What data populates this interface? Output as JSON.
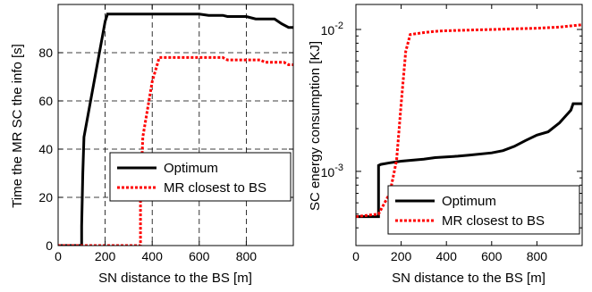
{
  "chart_data": [
    {
      "type": "line",
      "xlabel": "SN distance to the BS [m]",
      "ylabel": "Time the MR SC the info [s]",
      "xlim": [
        0,
        1000
      ],
      "ylim": [
        0,
        100
      ],
      "xscale": "linear",
      "yscale": "linear",
      "grid": true,
      "grid_style": "dashed",
      "legend_position": "lower-right",
      "x_ticks": [
        0,
        200,
        400,
        600,
        800
      ],
      "x_tick_labels": [
        "0",
        "200",
        "400",
        "600",
        "800"
      ],
      "y_ticks": [
        0,
        20,
        40,
        60,
        80
      ],
      "y_tick_labels": [
        "0",
        "20",
        "40",
        "60",
        "80"
      ],
      "series": [
        {
          "name": "Optimum",
          "color": "#000000",
          "style": "solid",
          "x": [
            0,
            100,
            100,
            105,
            110,
            200,
            210,
            600,
            640,
            700,
            720,
            800,
            840,
            920,
            950,
            980,
            1000
          ],
          "y": [
            0,
            0,
            8,
            30,
            45,
            93,
            96,
            96,
            95.5,
            95.5,
            95,
            95,
            94,
            94,
            92,
            90.5,
            90.5
          ]
        },
        {
          "name": "MR closest to BS",
          "color": "#ff0000",
          "style": "dotted",
          "x": [
            0,
            350,
            350,
            360,
            400,
            430,
            700,
            720,
            860,
            880,
            960,
            980,
            1000
          ],
          "y": [
            0,
            0,
            20,
            45,
            68,
            78,
            78,
            77,
            77,
            76,
            76,
            75,
            75
          ]
        }
      ]
    },
    {
      "type": "line",
      "xlabel": "SN distance to the BS [m]",
      "ylabel": "SC energy consumption [KJ]",
      "xlim": [
        0,
        1000
      ],
      "ylim": [
        0.0003,
        0.015
      ],
      "xscale": "linear",
      "yscale": "log",
      "grid": false,
      "legend_position": "lower-right",
      "x_ticks": [
        0,
        200,
        400,
        600,
        800
      ],
      "x_tick_labels": [
        "0",
        "200",
        "400",
        "600",
        "800"
      ],
      "y_ticks": [
        0.001,
        0.01
      ],
      "y_tick_base": [
        "10",
        "10"
      ],
      "y_tick_exp": [
        "-3",
        "-2"
      ],
      "series": [
        {
          "name": "Optimum",
          "color": "#000000",
          "style": "solid",
          "x": [
            0,
            100,
            100,
            110,
            150,
            200,
            300,
            350,
            450,
            500,
            600,
            650,
            700,
            750,
            800,
            850,
            900,
            950,
            960,
            1000
          ],
          "y": [
            0.00048,
            0.00048,
            0.0011,
            0.00112,
            0.00115,
            0.00118,
            0.00122,
            0.00125,
            0.00128,
            0.0013,
            0.00135,
            0.0014,
            0.0015,
            0.00165,
            0.0018,
            0.0019,
            0.0022,
            0.0027,
            0.003,
            0.003
          ]
        },
        {
          "name": "MR closest to BS",
          "color": "#ff0000",
          "style": "dotted",
          "x": [
            0,
            100,
            150,
            180,
            200,
            220,
            240,
            300,
            350,
            400,
            500,
            600,
            700,
            800,
            900,
            1000
          ],
          "y": [
            0.00048,
            0.0005,
            0.0007,
            0.0012,
            0.003,
            0.007,
            0.0092,
            0.0095,
            0.0097,
            0.0098,
            0.0099,
            0.01,
            0.0101,
            0.0102,
            0.0104,
            0.0108
          ]
        }
      ]
    }
  ]
}
